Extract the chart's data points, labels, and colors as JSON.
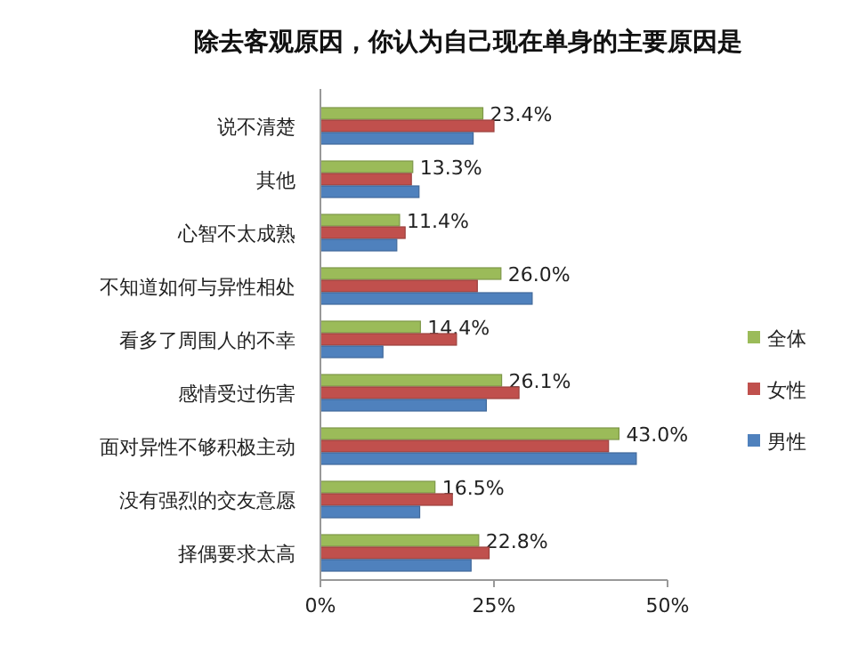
{
  "chart_data": {
    "type": "bar",
    "orientation": "horizontal",
    "title": "除去客观原因，你认为自己现在单身的主要原因是",
    "categories": [
      "说不清楚",
      "其他",
      "心智不太成熟",
      "不知道如何与异性相处",
      "看多了周围人的不幸",
      "感情受过伤害",
      "面对异性不够积极主动",
      "没有强烈的交友意愿",
      "择偶要求太高"
    ],
    "series": [
      {
        "name": "全体",
        "color": "#9bbb59",
        "values": [
          23.4,
          13.3,
          11.4,
          26.0,
          14.4,
          26.1,
          43.0,
          16.5,
          22.8
        ],
        "value_labels": [
          "23.4%",
          "13.3%",
          "11.4%",
          "26.0%",
          "14.4%",
          "26.1%",
          "43.0%",
          "16.5%",
          "22.8%"
        ]
      },
      {
        "name": "女性",
        "color": "#c0504d",
        "values": [
          25.0,
          13.1,
          12.2,
          22.6,
          19.6,
          28.6,
          41.5,
          19.0,
          24.3
        ]
      },
      {
        "name": "男性",
        "color": "#4f81bd",
        "values": [
          22.0,
          14.2,
          11.0,
          30.5,
          9.0,
          23.9,
          45.5,
          14.3,
          21.7
        ]
      }
    ],
    "xlim": [
      0,
      50
    ],
    "xticks": [
      {
        "value": 0,
        "label": "0%"
      },
      {
        "value": 25,
        "label": "25%"
      },
      {
        "value": 50,
        "label": "50%"
      }
    ],
    "legend": "right",
    "grid": false
  }
}
